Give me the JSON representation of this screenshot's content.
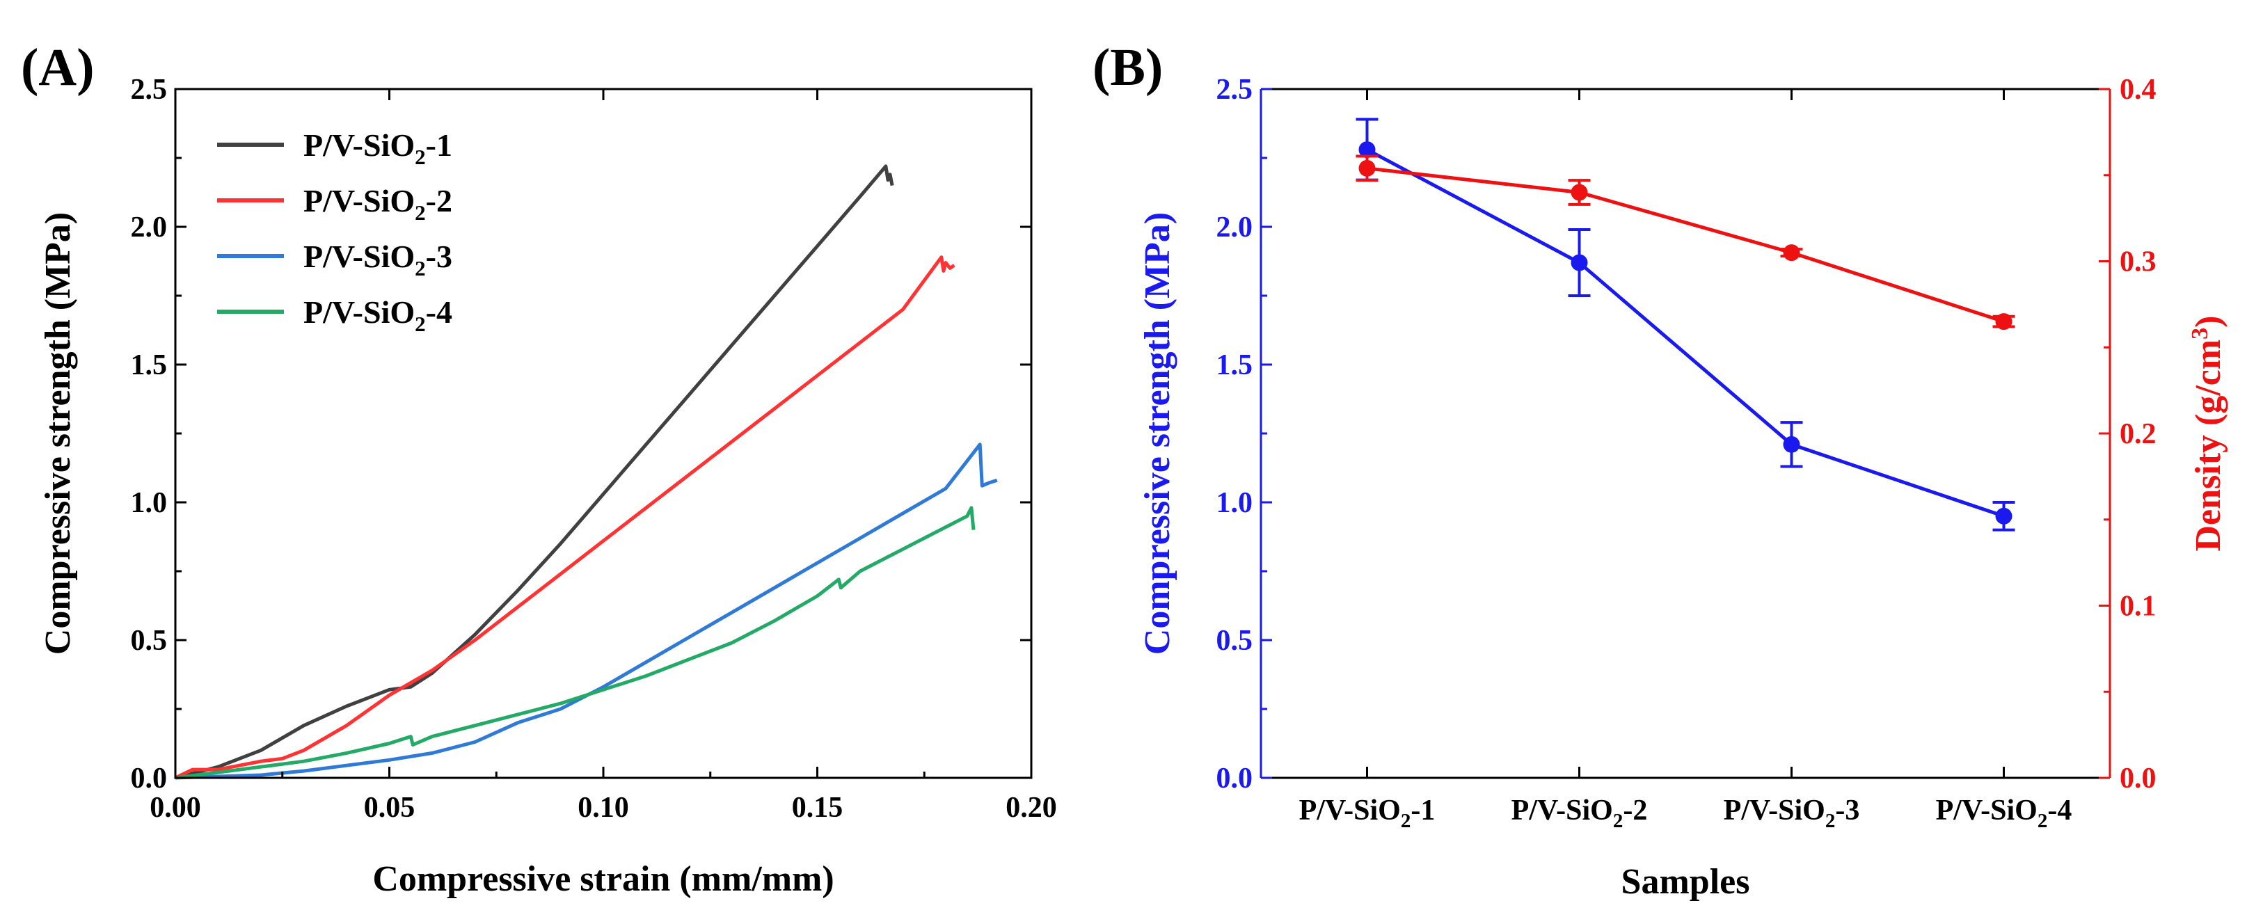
{
  "chart_data": [
    {
      "panel_label": "(A)",
      "type": "line",
      "xlabel": "Compressive strain (mm/mm)",
      "ylabel": "Compressive strength (MPa)",
      "xlim": [
        0,
        0.2
      ],
      "ylim": [
        0,
        2.5
      ],
      "xticks": [
        0,
        0.05,
        0.1,
        0.15,
        0.2
      ],
      "xtick_labels": [
        "0.00",
        "0.05",
        "0.10",
        "0.15",
        "0.20"
      ],
      "yticks": [
        0,
        0.5,
        1.0,
        1.5,
        2.0,
        2.5
      ],
      "ytick_labels": [
        "0.0",
        "0.5",
        "1.0",
        "1.5",
        "2.0",
        "2.5"
      ],
      "legend_position": "top-left",
      "series": [
        {
          "name_main": "P/V-SiO",
          "name_sub": "2",
          "name_tail": "-1",
          "color": "#404040",
          "x": [
            0,
            0.01,
            0.02,
            0.03,
            0.04,
            0.05,
            0.055,
            0.06,
            0.07,
            0.08,
            0.09,
            0.1,
            0.11,
            0.12,
            0.13,
            0.14,
            0.15,
            0.16,
            0.166,
            0.1665,
            0.167,
            0.1675
          ],
          "y": [
            0,
            0.04,
            0.1,
            0.19,
            0.26,
            0.32,
            0.33,
            0.38,
            0.52,
            0.68,
            0.85,
            1.03,
            1.21,
            1.39,
            1.57,
            1.75,
            1.93,
            2.11,
            2.22,
            2.17,
            2.19,
            2.15
          ]
        },
        {
          "name_main": "P/V-SiO",
          "name_sub": "2",
          "name_tail": "-2",
          "color": "#ff3333",
          "x": [
            0,
            0.004,
            0.01,
            0.02,
            0.025,
            0.03,
            0.04,
            0.05,
            0.06,
            0.07,
            0.08,
            0.09,
            0.1,
            0.11,
            0.12,
            0.13,
            0.14,
            0.15,
            0.16,
            0.17,
            0.179,
            0.1795,
            0.18,
            0.181,
            0.182
          ],
          "y": [
            0,
            0.03,
            0.03,
            0.06,
            0.07,
            0.1,
            0.19,
            0.3,
            0.39,
            0.5,
            0.62,
            0.74,
            0.86,
            0.98,
            1.1,
            1.22,
            1.34,
            1.46,
            1.58,
            1.7,
            1.89,
            1.84,
            1.87,
            1.85,
            1.86
          ]
        },
        {
          "name_main": "P/V-SiO",
          "name_sub": "2",
          "name_tail": "-3",
          "color": "#2e7ad6",
          "x": [
            0,
            0.02,
            0.03,
            0.04,
            0.05,
            0.06,
            0.07,
            0.08,
            0.09,
            0.1,
            0.11,
            0.12,
            0.13,
            0.14,
            0.15,
            0.16,
            0.17,
            0.18,
            0.188,
            0.1885,
            0.19,
            0.192
          ],
          "y": [
            0,
            0.01,
            0.025,
            0.045,
            0.065,
            0.09,
            0.13,
            0.2,
            0.25,
            0.33,
            0.42,
            0.51,
            0.6,
            0.69,
            0.78,
            0.87,
            0.96,
            1.05,
            1.21,
            1.06,
            1.07,
            1.08
          ]
        },
        {
          "name_main": "P/V-SiO",
          "name_sub": "2",
          "name_tail": "-4",
          "color": "#22aa66",
          "x": [
            0,
            0.01,
            0.02,
            0.03,
            0.04,
            0.05,
            0.055,
            0.0555,
            0.06,
            0.07,
            0.08,
            0.09,
            0.1,
            0.11,
            0.12,
            0.13,
            0.14,
            0.15,
            0.155,
            0.1555,
            0.16,
            0.17,
            0.18,
            0.185,
            0.186,
            0.1865
          ],
          "y": [
            0,
            0.02,
            0.04,
            0.06,
            0.09,
            0.125,
            0.15,
            0.12,
            0.15,
            0.19,
            0.23,
            0.27,
            0.32,
            0.37,
            0.43,
            0.49,
            0.57,
            0.66,
            0.72,
            0.69,
            0.75,
            0.83,
            0.91,
            0.95,
            0.98,
            0.9
          ]
        }
      ]
    },
    {
      "panel_label": "(B)",
      "type": "line",
      "xlabel": "Samples",
      "ylabel_left": "Compressive strength (MPa)",
      "ylabel_right_main": "Density (g/cm",
      "ylabel_right_sup": "3",
      "ylabel_right_tail": ")",
      "categories_main": [
        "P/V-SiO",
        "P/V-SiO",
        "P/V-SiO",
        "P/V-SiO"
      ],
      "categories_sub": [
        "2",
        "2",
        "2",
        "2"
      ],
      "categories_tail": [
        "-1",
        "-2",
        "-3",
        "-4"
      ],
      "ylim_left": [
        0,
        2.5
      ],
      "yticks_left": [
        0,
        0.5,
        1.0,
        1.5,
        2.0,
        2.5
      ],
      "ytick_labels_left": [
        "0.0",
        "0.5",
        "1.0",
        "1.5",
        "2.0",
        "2.5"
      ],
      "ylim_right": [
        0,
        0.4
      ],
      "yticks_right": [
        0,
        0.1,
        0.2,
        0.3,
        0.4
      ],
      "ytick_labels_right": [
        "0.0",
        "0.1",
        "0.2",
        "0.3",
        "0.4"
      ],
      "left_color": "#1a1aee",
      "right_color": "#ee1111",
      "series": [
        {
          "name": "Compressive strength",
          "axis": "left",
          "color": "#1a1aee",
          "values": [
            2.28,
            1.87,
            1.21,
            0.95
          ],
          "errors": [
            0.11,
            0.12,
            0.08,
            0.05
          ]
        },
        {
          "name": "Density",
          "axis": "right",
          "color": "#ee1111",
          "values": [
            0.354,
            0.34,
            0.305,
            0.265
          ],
          "errors": [
            0.007,
            0.007,
            0.002,
            0.003
          ]
        }
      ]
    }
  ]
}
